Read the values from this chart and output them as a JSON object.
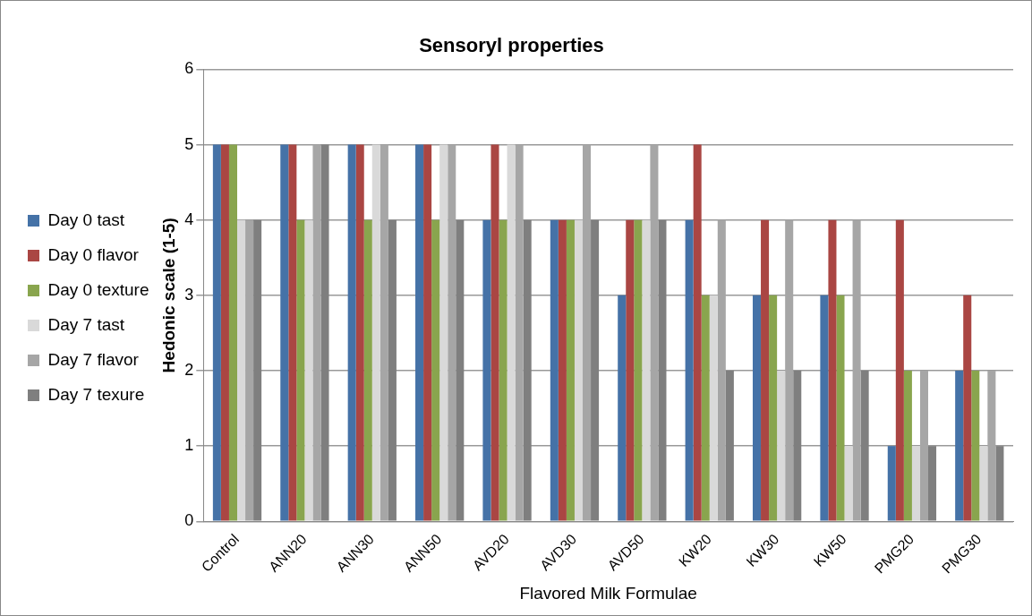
{
  "chart_data": {
    "type": "bar",
    "title": "Sensoryl properties",
    "xlabel": "Flavored Milk Formulae",
    "ylabel": "Hedonic scale (1-5)",
    "categories": [
      "Control",
      "ANN20",
      "ANN30",
      "ANN50",
      "AVD20",
      "AVD30",
      "AVD50",
      "KW20",
      "KW30",
      "KW50",
      "PMG20",
      "PMG30"
    ],
    "series": [
      {
        "name": "Day 0 tast",
        "color": "#4572a7",
        "values": [
          5,
          5,
          5,
          5,
          4,
          4,
          3,
          4,
          3,
          3,
          1,
          2
        ]
      },
      {
        "name": "Day 0 flavor",
        "color": "#aa4643",
        "values": [
          5,
          5,
          5,
          5,
          5,
          4,
          4,
          5,
          4,
          4,
          4,
          3
        ]
      },
      {
        "name": "Day 0 texture",
        "color": "#89a54e",
        "values": [
          5,
          4,
          4,
          4,
          4,
          4,
          4,
          3,
          3,
          3,
          2,
          2
        ]
      },
      {
        "name": "Day 7 tast",
        "color": "#d9d9d9",
        "values": [
          4,
          4,
          5,
          5,
          5,
          4,
          4,
          3,
          2,
          1,
          1,
          1
        ]
      },
      {
        "name": "Day 7 flavor",
        "color": "#a6a6a6",
        "values": [
          4,
          5,
          5,
          5,
          5,
          5,
          5,
          4,
          4,
          4,
          2,
          2
        ]
      },
      {
        "name": "Day 7 texure",
        "color": "#7f7f7f",
        "values": [
          4,
          5,
          4,
          4,
          4,
          4,
          4,
          2,
          2,
          2,
          1,
          1
        ]
      }
    ],
    "ylim": [
      0,
      6
    ],
    "yticks": [
      0,
      1,
      2,
      3,
      4,
      5,
      6
    ],
    "grid": "y",
    "legend": "left"
  }
}
